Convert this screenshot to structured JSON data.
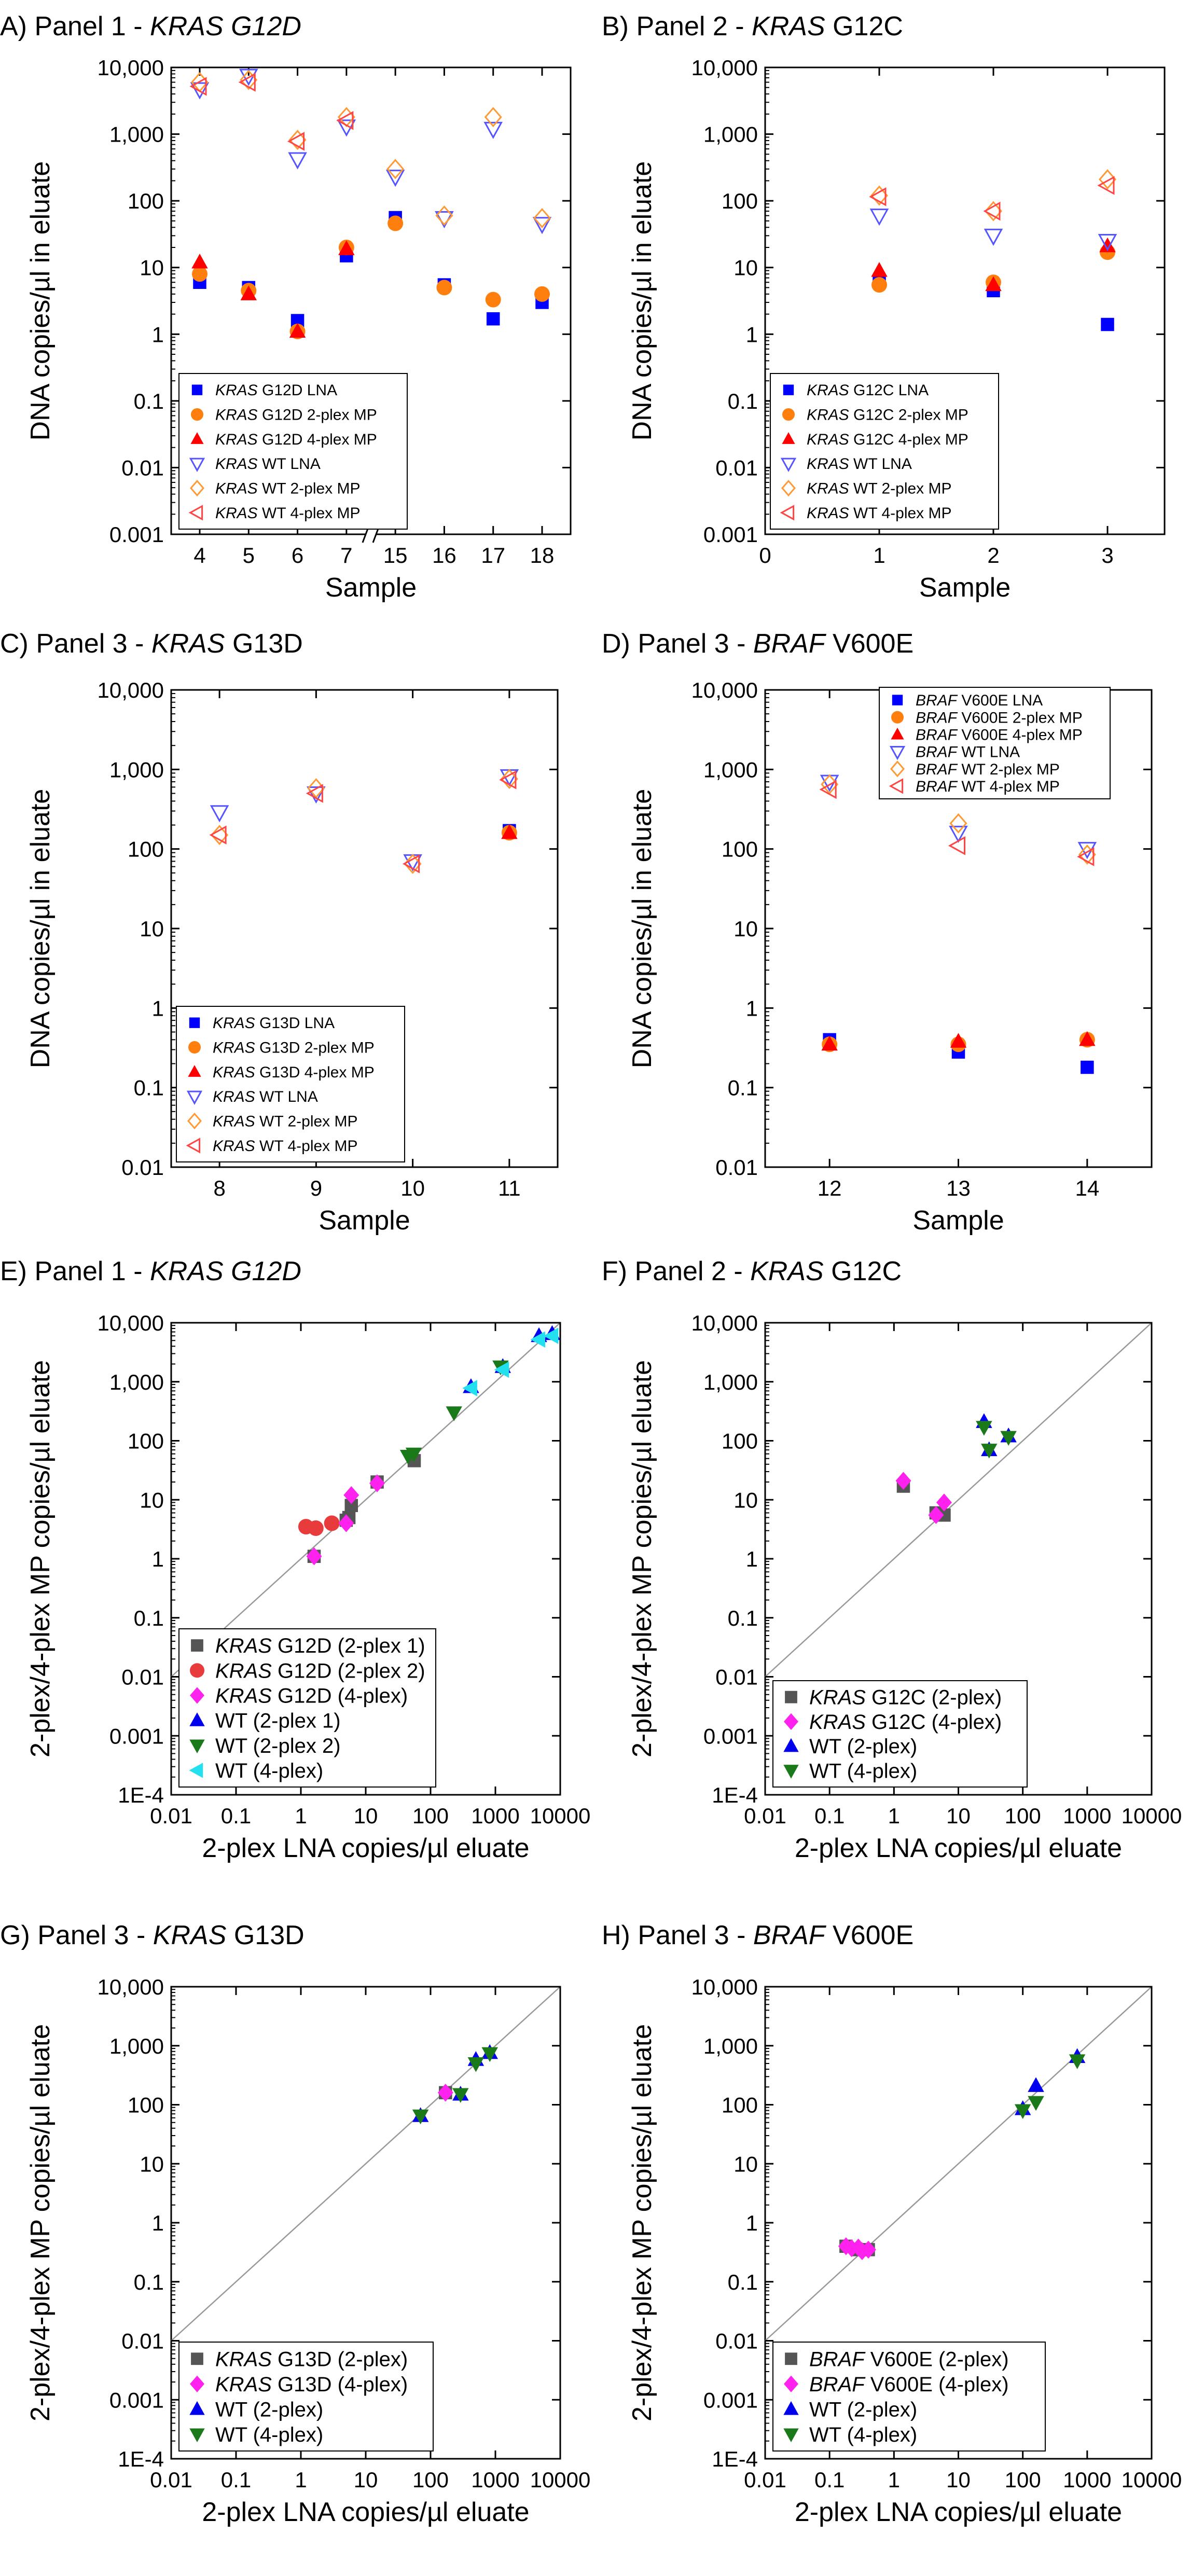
{
  "chart_data": [
    {
      "id": "A",
      "type": "scatter",
      "scale": "log",
      "axes": "dual-right-box",
      "title": {
        "prefix": "A) Panel 1 - ",
        "gene": "KRAS G12D",
        "suffix": ""
      },
      "xlabel": "Sample",
      "ylabel": "DNA copies/µl in eluate",
      "ylim": [
        0.001,
        10000
      ],
      "yticks": [
        "0.001",
        "0.01",
        "0.1",
        "1",
        "10",
        "100",
        "1,000",
        "10,000"
      ],
      "xticks": [
        "4",
        "5",
        "6",
        "7",
        "15",
        "16",
        "17",
        "18"
      ],
      "axis_break": "between 7 and 15",
      "legend": "lower-left",
      "series": [
        {
          "name": "KRAS G12D LNA",
          "marker": "square",
          "color": "#0000ff",
          "x": [
            0,
            1,
            2,
            3,
            4,
            5,
            6,
            7
          ],
          "y": [
            6,
            5,
            1.6,
            15,
            56,
            5.5,
            1.7,
            3
          ]
        },
        {
          "name": "KRAS G12D 2-plex MP",
          "marker": "circle",
          "color": "#ff7f0e",
          "x": [
            0,
            1,
            2,
            3,
            4,
            5,
            6,
            7
          ],
          "y": [
            8,
            4.5,
            1.1,
            20,
            46,
            5,
            3.3,
            4
          ]
        },
        {
          "name": "KRAS G12D 4-plex MP",
          "marker": "triangle-up",
          "color": "#ff0000",
          "x": [
            0,
            1,
            2,
            3
          ],
          "y": [
            12,
            4,
            1.1,
            19
          ]
        },
        {
          "name": "KRAS WT LNA",
          "marker": "triangle-down-open",
          "color": "#5555ff",
          "x": [
            0,
            1,
            2,
            3,
            4,
            5,
            6,
            7
          ],
          "y": [
            4700,
            7500,
            420,
            1300,
            230,
            55,
            1200,
            45
          ]
        },
        {
          "name": "KRAS WT 2-plex MP",
          "marker": "diamond-open",
          "color": "#ff9933",
          "x": [
            0,
            1,
            2,
            3,
            4,
            5,
            6,
            7
          ],
          "y": [
            6000,
            6500,
            820,
            1800,
            300,
            60,
            1800,
            55
          ]
        },
        {
          "name": "KRAS WT 4-plex MP",
          "marker": "triangle-left-open",
          "color": "#ff4444",
          "x": [
            0,
            1,
            2,
            3
          ],
          "y": [
            5200,
            6000,
            780,
            1600
          ]
        }
      ]
    },
    {
      "id": "B",
      "type": "scatter",
      "scale": "log",
      "axes": "dual-right-box",
      "title": {
        "prefix": "B) Panel 2 - ",
        "gene": "KRAS",
        "suffix": " G12C"
      },
      "xlabel": "Sample",
      "ylabel": "DNA copies/µl in eluate",
      "ylim": [
        0.001,
        10000
      ],
      "yticks": [
        "0.001",
        "0.01",
        "0.1",
        "1",
        "10",
        "100",
        "1,000",
        "10,000"
      ],
      "xticks": [
        "0",
        "1",
        "2",
        "3"
      ],
      "legend": "lower-left",
      "series": [
        {
          "name": "KRAS G12C LNA",
          "marker": "square",
          "color": "#0000ff",
          "x": [
            1,
            2,
            3
          ],
          "y": [
            6,
            4.5,
            1.4
          ]
        },
        {
          "name": "KRAS G12C 2-plex MP",
          "marker": "circle",
          "color": "#ff7f0e",
          "x": [
            1,
            2,
            3
          ],
          "y": [
            5.5,
            6,
            17
          ]
        },
        {
          "name": "KRAS G12C 4-plex MP",
          "marker": "triangle-up",
          "color": "#ff0000",
          "x": [
            1,
            2,
            3
          ],
          "y": [
            9,
            5.5,
            21
          ]
        },
        {
          "name": "KRAS WT LNA",
          "marker": "triangle-down-open",
          "color": "#5555ff",
          "x": [
            1,
            2,
            3
          ],
          "y": [
            60,
            30,
            25
          ]
        },
        {
          "name": "KRAS WT 2-plex MP",
          "marker": "diamond-open",
          "color": "#ff9933",
          "x": [
            1,
            2,
            3
          ],
          "y": [
            120,
            70,
            210
          ]
        },
        {
          "name": "KRAS WT 4-plex MP",
          "marker": "triangle-left-open",
          "color": "#ff4444",
          "x": [
            1,
            2,
            3
          ],
          "y": [
            115,
            70,
            170
          ]
        }
      ]
    },
    {
      "id": "C",
      "type": "scatter",
      "scale": "log",
      "axes": "box",
      "title": {
        "prefix": "C) Panel 3 - ",
        "gene": "KRAS",
        "suffix": " G13D"
      },
      "xlabel": "Sample",
      "ylabel": "DNA copies/µl in eluate",
      "ylim": [
        0.01,
        10000
      ],
      "yticks": [
        "0.01",
        "0.1",
        "1",
        "10",
        "100",
        "1,000",
        "10,000"
      ],
      "xticks": [
        "8",
        "9",
        "10",
        "11"
      ],
      "legend": "lower-left",
      "series": [
        {
          "name": "KRAS G13D LNA",
          "marker": "square",
          "color": "#0000ff",
          "x": [
            11
          ],
          "y": [
            170
          ]
        },
        {
          "name": "KRAS G13D 2-plex MP",
          "marker": "circle",
          "color": "#ff7f0e",
          "x": [
            11
          ],
          "y": [
            160
          ]
        },
        {
          "name": "KRAS G13D 4-plex MP",
          "marker": "triangle-up",
          "color": "#ff0000",
          "x": [
            11
          ],
          "y": [
            160
          ]
        },
        {
          "name": "KRAS WT LNA",
          "marker": "triangle-down-open",
          "color": "#5555ff",
          "x": [
            8,
            9,
            10,
            11
          ],
          "y": [
            290,
            500,
            70,
            820
          ]
        },
        {
          "name": "KRAS WT 2-plex MP",
          "marker": "diamond-open",
          "color": "#ff9933",
          "x": [
            8,
            9,
            10,
            11
          ],
          "y": [
            150,
            580,
            65,
            760
          ]
        },
        {
          "name": "KRAS WT 4-plex MP",
          "marker": "triangle-left-open",
          "color": "#ff4444",
          "x": [
            8,
            9,
            10,
            11
          ],
          "y": [
            150,
            500,
            65,
            740
          ]
        }
      ]
    },
    {
      "id": "D",
      "type": "scatter",
      "scale": "log",
      "axes": "box",
      "title": {
        "prefix": "D) Panel 3 - ",
        "gene": "BRAF",
        "suffix": " V600E"
      },
      "xlabel": "Sample",
      "ylabel": "DNA copies/µl in eluate",
      "ylim": [
        0.01,
        10000
      ],
      "yticks": [
        "0.01",
        "0.1",
        "1",
        "10",
        "100",
        "1,000",
        "10,000"
      ],
      "xticks": [
        "12",
        "13",
        "14"
      ],
      "legend": "top",
      "series": [
        {
          "name": "BRAF V600E LNA",
          "marker": "square",
          "color": "#0000ff",
          "x": [
            12,
            13,
            14
          ],
          "y": [
            0.4,
            0.28,
            0.18
          ]
        },
        {
          "name": "BRAF V600E 2-plex MP",
          "marker": "circle",
          "color": "#ff7f0e",
          "x": [
            12,
            13,
            14
          ],
          "y": [
            0.35,
            0.35,
            0.4
          ]
        },
        {
          "name": "BRAF V600E 4-plex MP",
          "marker": "triangle-up",
          "color": "#ff0000",
          "x": [
            12,
            13,
            14
          ],
          "y": [
            0.35,
            0.38,
            0.4
          ]
        },
        {
          "name": "BRAF WT LNA",
          "marker": "triangle-down-open",
          "color": "#5555ff",
          "x": [
            12,
            13,
            14
          ],
          "y": [
            700,
            160,
            100
          ]
        },
        {
          "name": "BRAF WT 2-plex MP",
          "marker": "diamond-open",
          "color": "#ff9933",
          "x": [
            12,
            13,
            14
          ],
          "y": [
            650,
            210,
            85
          ]
        },
        {
          "name": "BRAF WT 4-plex MP",
          "marker": "triangle-left-open",
          "color": "#ff4444",
          "x": [
            12,
            13,
            14
          ],
          "y": [
            560,
            110,
            80
          ]
        }
      ]
    },
    {
      "id": "E",
      "type": "scatter",
      "scale": "loglog",
      "axes": "box",
      "title": {
        "prefix": "E) Panel 1 - ",
        "gene": "KRAS G12D",
        "suffix": ""
      },
      "xlabel": "2-plex LNA copies/µl eluate",
      "ylabel": "2-plex/4-plex MP copies/µl eluate",
      "xlim": [
        0.01,
        10000
      ],
      "ylim": [
        0.0001,
        10000
      ],
      "xticks": [
        "0.01",
        "0.1",
        "1",
        "10",
        "100",
        "1000",
        "10000"
      ],
      "yticks": [
        "1E-4",
        "0.001",
        "0.01",
        "0.1",
        "1",
        "10",
        "100",
        "1,000",
        "10,000"
      ],
      "identity_line": true,
      "legend": "lower-left",
      "series": [
        {
          "name": "KRAS G12D (2-plex 1)",
          "marker": "square",
          "color": "#555555",
          "x": [
            6,
            5,
            1.6,
            15,
            56,
            5.5
          ],
          "y": [
            8,
            4.5,
            1.1,
            20,
            46,
            5
          ]
        },
        {
          "name": "KRAS G12D (2-plex 2)",
          "marker": "circle",
          "color": "#e83c3c",
          "x": [
            1.7,
            3,
            1.2
          ],
          "y": [
            3.3,
            4,
            3.5
          ]
        },
        {
          "name": "KRAS G12D (4-plex)",
          "marker": "diamond",
          "color": "#ff22ee",
          "x": [
            6,
            5,
            1.6,
            15
          ],
          "y": [
            12,
            4,
            1.1,
            19
          ]
        },
        {
          "name": "WT (2-plex 1)",
          "marker": "triangle-up",
          "color": "#0000ee",
          "x": [
            4700,
            7500,
            420,
            1300
          ],
          "y": [
            6000,
            6500,
            820,
            1800
          ]
        },
        {
          "name": "WT (2-plex 2)",
          "marker": "triangle-down",
          "color": "#1a7a1a",
          "x": [
            230,
            55,
            1200,
            45
          ],
          "y": [
            300,
            60,
            1800,
            55
          ]
        },
        {
          "name": "WT (4-plex)",
          "marker": "triangle-left",
          "color": "#22e0ee",
          "x": [
            4700,
            7500,
            420,
            1300
          ],
          "y": [
            5200,
            6000,
            780,
            1600
          ]
        }
      ]
    },
    {
      "id": "F",
      "type": "scatter",
      "scale": "loglog",
      "axes": "box",
      "title": {
        "prefix": "F) Panel 2 - ",
        "gene": "KRAS",
        "suffix": " G12C"
      },
      "xlabel": "2-plex LNA copies/µl eluate",
      "ylabel": "2-plex/4-plex MP copies/µl eluate",
      "xlim": [
        0.01,
        10000
      ],
      "ylim": [
        0.0001,
        10000
      ],
      "xticks": [
        "0.01",
        "0.1",
        "1",
        "10",
        "100",
        "1000",
        "10000"
      ],
      "yticks": [
        "1E-4",
        "0.001",
        "0.01",
        "0.1",
        "1",
        "10",
        "100",
        "1,000",
        "10,000"
      ],
      "identity_line": true,
      "legend": "lower-left",
      "series": [
        {
          "name": "KRAS G12C (2-plex)",
          "marker": "square",
          "color": "#555555",
          "x": [
            1.4,
            6,
            4.5
          ],
          "y": [
            17,
            5.5,
            6
          ]
        },
        {
          "name": "KRAS G12C (4-plex)",
          "marker": "diamond",
          "color": "#ff22ee",
          "x": [
            1.4,
            6,
            4.5
          ],
          "y": [
            21,
            9,
            5.5
          ]
        },
        {
          "name": "WT (2-plex)",
          "marker": "triangle-up",
          "color": "#0000ee",
          "x": [
            25,
            60,
            30
          ],
          "y": [
            210,
            120,
            70
          ]
        },
        {
          "name": "WT (4-plex)",
          "marker": "triangle-down",
          "color": "#1a7a1a",
          "x": [
            25,
            60,
            30
          ],
          "y": [
            170,
            115,
            70
          ]
        }
      ]
    },
    {
      "id": "G",
      "type": "scatter",
      "scale": "loglog",
      "axes": "box",
      "title": {
        "prefix": "G) Panel 3 - ",
        "gene": "KRAS",
        "suffix": " G13D"
      },
      "xlabel": "2-plex LNA copies/µl eluate",
      "ylabel": "2-plex/4-plex MP copies/µl eluate",
      "xlim": [
        0.01,
        10000
      ],
      "ylim": [
        0.0001,
        10000
      ],
      "xticks": [
        "0.01",
        "0.1",
        "1",
        "10",
        "100",
        "1000",
        "10000"
      ],
      "yticks": [
        "1E-4",
        "0.001",
        "0.01",
        "0.1",
        "1",
        "10",
        "100",
        "1,000",
        "10,000"
      ],
      "identity_line": true,
      "legend": "lower-left",
      "series": [
        {
          "name": "KRAS G13D (2-plex)",
          "marker": "square",
          "color": "#555555",
          "x": [
            170
          ],
          "y": [
            160
          ]
        },
        {
          "name": "KRAS G13D (4-plex)",
          "marker": "diamond",
          "color": "#ff22ee",
          "x": [
            170
          ],
          "y": [
            160
          ]
        },
        {
          "name": "WT (2-plex)",
          "marker": "triangle-up",
          "color": "#0000ee",
          "x": [
            70,
            290,
            500,
            820
          ],
          "y": [
            65,
            150,
            580,
            760
          ]
        },
        {
          "name": "WT (4-plex)",
          "marker": "triangle-down",
          "color": "#1a7a1a",
          "x": [
            70,
            290,
            500,
            820
          ],
          "y": [
            65,
            150,
            500,
            740
          ]
        }
      ]
    },
    {
      "id": "H",
      "type": "scatter",
      "scale": "loglog",
      "axes": "box",
      "title": {
        "prefix": "H) Panel 3 - ",
        "gene": "BRAF",
        "suffix": " V600E"
      },
      "xlabel": "2-plex LNA copies/µl eluate",
      "ylabel": "2-plex/4-plex MP copies/µl eluate",
      "xlim": [
        0.01,
        10000
      ],
      "ylim": [
        0.0001,
        10000
      ],
      "xticks": [
        "0.01",
        "0.1",
        "1",
        "10",
        "100",
        "1000",
        "10000"
      ],
      "yticks": [
        "1E-4",
        "0.001",
        "0.01",
        "0.1",
        "1",
        "10",
        "100",
        "1,000",
        "10,000"
      ],
      "identity_line": true,
      "legend": "lower-left",
      "series": [
        {
          "name": "BRAF V600E (2-plex)",
          "marker": "square",
          "color": "#555555",
          "x": [
            0.4,
            0.28,
            0.18
          ],
          "y": [
            0.35,
            0.35,
            0.4
          ]
        },
        {
          "name": "BRAF V600E (4-plex)",
          "marker": "diamond",
          "color": "#ff22ee",
          "x": [
            0.4,
            0.28,
            0.18,
            0.22,
            0.32
          ],
          "y": [
            0.35,
            0.38,
            0.4,
            0.37,
            0.33
          ]
        },
        {
          "name": "WT (2-plex)",
          "marker": "triangle-up",
          "color": "#0000ee",
          "x": [
            700,
            160,
            100
          ],
          "y": [
            650,
            210,
            85
          ]
        },
        {
          "name": "WT (4-plex)",
          "marker": "triangle-down",
          "color": "#1a7a1a",
          "x": [
            700,
            160,
            100
          ],
          "y": [
            560,
            110,
            80
          ]
        }
      ]
    }
  ]
}
